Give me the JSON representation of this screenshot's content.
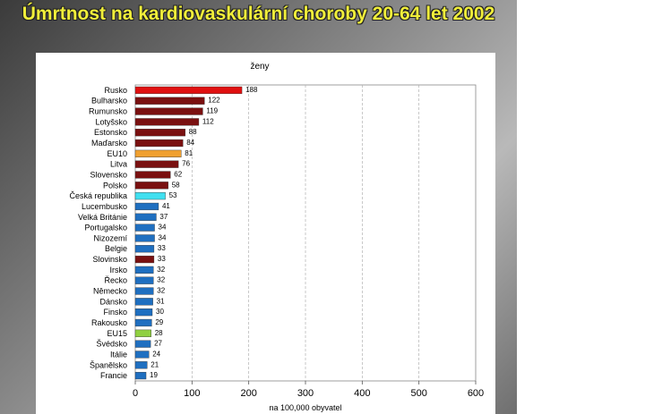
{
  "slide": {
    "title": "Úmrtnost na kardiovaskulární choroby 20-64 let 2002"
  },
  "chart_data": {
    "type": "bar",
    "orientation": "horizontal",
    "title": "ženy",
    "xlabel": "na 100,000 obyvatel",
    "xlim": [
      0,
      600
    ],
    "xticks": [
      0,
      100,
      200,
      300,
      400,
      500,
      600
    ],
    "grid": true,
    "categories": [
      "Rusko",
      "Bulharsko",
      "Rumunsko",
      "Lotyšsko",
      "Estonsko",
      "Maďarsko",
      "EU10",
      "Litva",
      "Slovensko",
      "Polsko",
      "Česká republika",
      "Lucembusko",
      "Velká Británie",
      "Portugalsko",
      "Nizozemí",
      "Belgie",
      "Slovinsko",
      "Irsko",
      "Řecko",
      "Německo",
      "Dánsko",
      "Finsko",
      "Rakousko",
      "EU15",
      "Švédsko",
      "Itálie",
      "Španělsko",
      "Francie"
    ],
    "values": [
      188,
      122,
      119,
      112,
      88,
      84,
      81,
      76,
      62,
      58,
      53,
      41,
      37,
      34,
      34,
      33,
      33,
      32,
      32,
      32,
      31,
      30,
      29,
      28,
      27,
      24,
      21,
      19
    ],
    "bar_colors": [
      "#e01010",
      "#7a1010",
      "#7a1010",
      "#7a1010",
      "#7a1010",
      "#7a1010",
      "#f0a030",
      "#7a1010",
      "#7a1010",
      "#7a1010",
      "#40e0f0",
      "#1f6fc0",
      "#1f6fc0",
      "#1f6fc0",
      "#1f6fc0",
      "#1f6fc0",
      "#7a1010",
      "#1f6fc0",
      "#1f6fc0",
      "#1f6fc0",
      "#1f6fc0",
      "#1f6fc0",
      "#1f6fc0",
      "#90d040",
      "#1f6fc0",
      "#1f6fc0",
      "#1f6fc0",
      "#1f6fc0"
    ]
  }
}
